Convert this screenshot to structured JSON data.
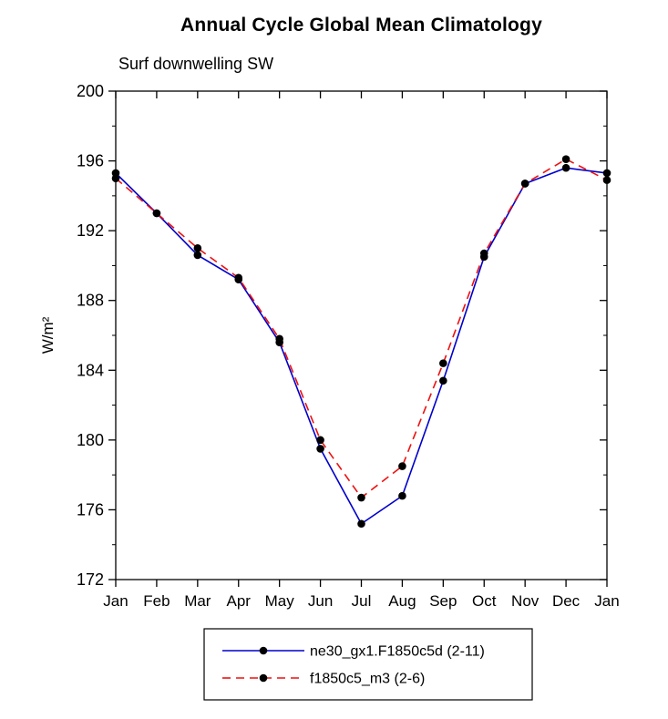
{
  "chart_data": {
    "type": "line",
    "title": "Annual Cycle Global Mean Climatology",
    "subtitle": "Surf downwelling SW",
    "ylabel": "W/m²",
    "xlabel": "",
    "categories": [
      "Jan",
      "Feb",
      "Mar",
      "Apr",
      "May",
      "Jun",
      "Jul",
      "Aug",
      "Sep",
      "Oct",
      "Nov",
      "Dec",
      "Jan"
    ],
    "ylim": [
      172,
      200
    ],
    "yticks": [
      172,
      176,
      180,
      184,
      188,
      192,
      196,
      200
    ],
    "yminor_interval": 2,
    "grid": false,
    "legend_position": "bottom-center",
    "frame": true,
    "axis_color": "#000000",
    "marker_color": "#000000",
    "series": [
      {
        "name": "ne30_gx1.F1850c5d (2-11)",
        "color": "#0000cc",
        "style": "solid",
        "marker": "circle",
        "marker_color": "#000000",
        "values": [
          195.3,
          193.0,
          190.6,
          189.2,
          185.6,
          179.5,
          175.2,
          176.8,
          183.4,
          190.5,
          194.7,
          195.6,
          195.3
        ]
      },
      {
        "name": "f1850c5_m3 (2-6)",
        "color": "#ee1111",
        "style": "dashed",
        "marker": "circle",
        "marker_color": "#000000",
        "values": [
          195.0,
          193.0,
          191.0,
          189.3,
          185.8,
          180.0,
          176.7,
          178.5,
          184.4,
          190.7,
          194.7,
          196.1,
          194.9
        ]
      }
    ]
  }
}
